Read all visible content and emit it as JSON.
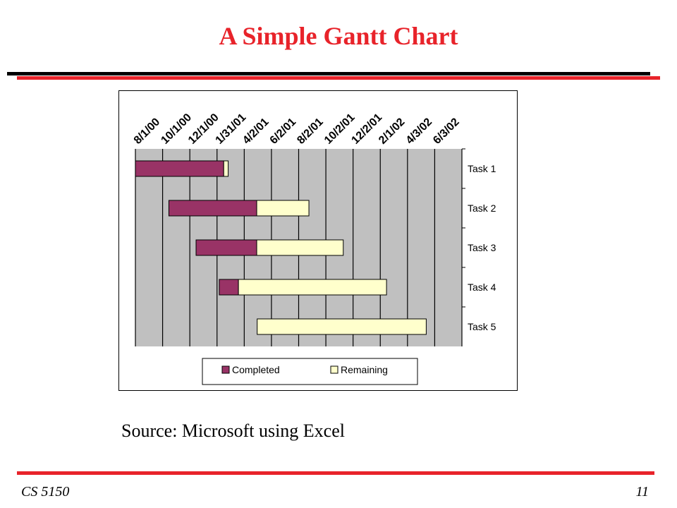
{
  "slide": {
    "title": "A Simple Gantt Chart",
    "source": "Source: Microsoft using Excel",
    "footer_left": "CS 5150",
    "page_number": "11"
  },
  "colors": {
    "title": "#e8232a",
    "rule_red": "#e8232a",
    "completed": "#993366",
    "remaining": "#ffffcc",
    "plot_bg": "#c0c0c0"
  },
  "chart_data": {
    "type": "gantt",
    "title": "",
    "x_axis_type": "date",
    "x_ticks": [
      "8/1/00",
      "10/1/00",
      "12/1/00",
      "1/31/01",
      "4/2/01",
      "6/2/01",
      "8/2/01",
      "10/2/01",
      "12/2/01",
      "2/1/02",
      "4/3/02",
      "6/3/02"
    ],
    "x_range": [
      "2000-08-01",
      "2002-08-03"
    ],
    "grid": true,
    "legend_position": "bottom",
    "categories": [
      "Task 1",
      "Task 2",
      "Task 3",
      "Task 4",
      "Task 5"
    ],
    "series": [
      {
        "name": "Completed",
        "color": "#993366"
      },
      {
        "name": "Remaining",
        "color": "#ffffcc"
      }
    ],
    "tasks": [
      {
        "name": "Task 1",
        "start": "2000-08-01",
        "completed_end": "2001-02-15",
        "end": "2001-02-25"
      },
      {
        "name": "Task 2",
        "start": "2000-10-15",
        "completed_end": "2001-04-30",
        "end": "2001-08-25"
      },
      {
        "name": "Task 3",
        "start": "2000-12-15",
        "completed_end": "2001-04-30",
        "end": "2001-11-10"
      },
      {
        "name": "Task 4",
        "start": "2001-02-05",
        "completed_end": "2001-03-20",
        "end": "2002-02-15"
      },
      {
        "name": "Task 5",
        "start": "2001-05-01",
        "completed_end": "2001-05-01",
        "end": "2002-05-15"
      }
    ]
  }
}
